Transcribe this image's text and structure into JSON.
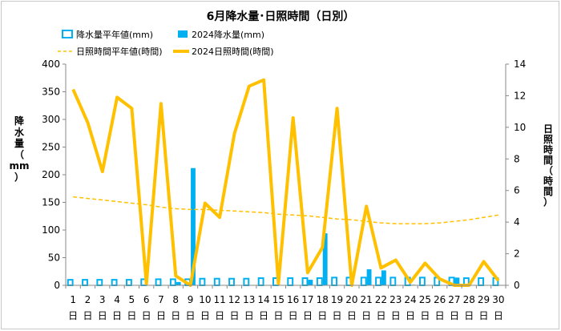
{
  "chart_data": {
    "type": "bar+line",
    "title": "6月降水量･日照時間（日別）",
    "x_labels": [
      "1",
      "2",
      "3",
      "4",
      "5",
      "6",
      "7",
      "8",
      "9",
      "10",
      "11",
      "12",
      "13",
      "14",
      "15",
      "16",
      "17",
      "18",
      "19",
      "20",
      "21",
      "22",
      "23",
      "24",
      "25",
      "26",
      "27",
      "28",
      "29",
      "30"
    ],
    "day_suffix": "日",
    "y_left": {
      "label_chars": [
        "降",
        "水",
        "量",
        "（",
        "mm",
        "）"
      ],
      "range": [
        0,
        400
      ],
      "ticks": [
        "0",
        "50",
        "100",
        "150",
        "200",
        "250",
        "300",
        "350",
        "400"
      ]
    },
    "y_right": {
      "label_chars": [
        "日",
        "照",
        "時",
        "間",
        "（",
        "時",
        "間",
        "）"
      ],
      "range": [
        0,
        14
      ],
      "ticks": [
        "0",
        "2",
        "4",
        "6",
        "8",
        "10",
        "12",
        "14"
      ]
    },
    "series": [
      {
        "name": "降水量平年値(mm)",
        "type": "bar-outline",
        "axis": "left",
        "color": "#00b0f0",
        "values": [
          10,
          10,
          10,
          10,
          10,
          11,
          11,
          11,
          11,
          12,
          12,
          12,
          12,
          13,
          13,
          13,
          13,
          13,
          14,
          14,
          14,
          14,
          14,
          14,
          14,
          14,
          14,
          13,
          13,
          13
        ]
      },
      {
        "name": "2024降水量(mm)",
        "type": "bar",
        "axis": "left",
        "color": "#00b0f0",
        "values": [
          0,
          0,
          0,
          0,
          0,
          0,
          0,
          6,
          212,
          0,
          0,
          0,
          0,
          0,
          0,
          0,
          10,
          94,
          0,
          0,
          29,
          27,
          0,
          1,
          0,
          0,
          14,
          0,
          0,
          0
        ]
      },
      {
        "name": "日照時間平年値(時間)",
        "type": "line-dashed",
        "axis": "right",
        "color": "#ffc000",
        "values": [
          5.6,
          5.5,
          5.4,
          5.3,
          5.2,
          5.1,
          4.95,
          4.85,
          4.8,
          4.8,
          4.75,
          4.7,
          4.65,
          4.6,
          4.5,
          4.45,
          4.4,
          4.3,
          4.2,
          4.15,
          4.05,
          3.95,
          3.9,
          3.9,
          3.9,
          3.95,
          4.05,
          4.15,
          4.3,
          4.45
        ]
      },
      {
        "name": "2024日照時間(時間)",
        "type": "line",
        "axis": "right",
        "color": "#ffc000",
        "values": [
          12.4,
          10.3,
          7.2,
          11.9,
          11.2,
          0.1,
          11.5,
          0.6,
          0.0,
          5.2,
          4.3,
          9.6,
          12.6,
          13.0,
          0.1,
          10.6,
          0.8,
          2.4,
          11.2,
          0.0,
          5.0,
          1.1,
          1.6,
          0.2,
          1.4,
          0.4,
          0.0,
          0.0,
          1.5,
          0.3
        ]
      }
    ],
    "legend_position": "top",
    "grid": false
  }
}
